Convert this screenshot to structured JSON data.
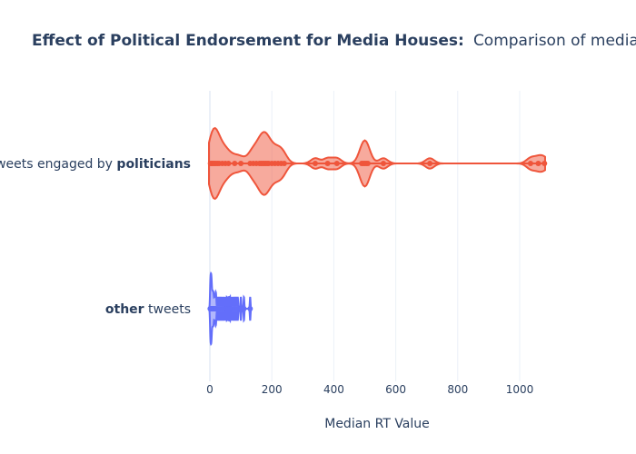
{
  "chart_data": {
    "type": "violin",
    "title": "Effect of Political Endorsement for Media Houses:",
    "subtitle": "Comparison of median retweets",
    "xlabel": "Median RT Value",
    "ylabel": "",
    "xlim": [
      -20,
      1100
    ],
    "x_ticks": [
      0,
      200,
      400,
      600,
      800,
      1000
    ],
    "grid": true,
    "legend": "none",
    "orientation": "horizontal",
    "series": [
      {
        "label_plain": "tweets engaged by ",
        "label_bold": "politicians",
        "color": "#ef553b",
        "fill": "rgba(239,85,59,0.5)",
        "points": [
          2,
          5,
          8,
          12,
          15,
          20,
          25,
          30,
          40,
          50,
          60,
          80,
          100,
          130,
          140,
          150,
          160,
          165,
          170,
          175,
          180,
          185,
          190,
          200,
          210,
          220,
          230,
          240,
          340,
          380,
          410,
          490,
          495,
          500,
          505,
          510,
          560,
          710,
          1035,
          1060,
          1080
        ]
      },
      {
        "label_plain": " tweets",
        "label_bold": "other",
        "color": "#636efa",
        "fill": "rgba(99,110,250,0.5)",
        "points": [
          1,
          2,
          3,
          4,
          5,
          6,
          8,
          10,
          12,
          15,
          18,
          20,
          25,
          30,
          35,
          40,
          45,
          50,
          55,
          60,
          65,
          70,
          75,
          80,
          85,
          90,
          100,
          110,
          130
        ]
      }
    ]
  }
}
